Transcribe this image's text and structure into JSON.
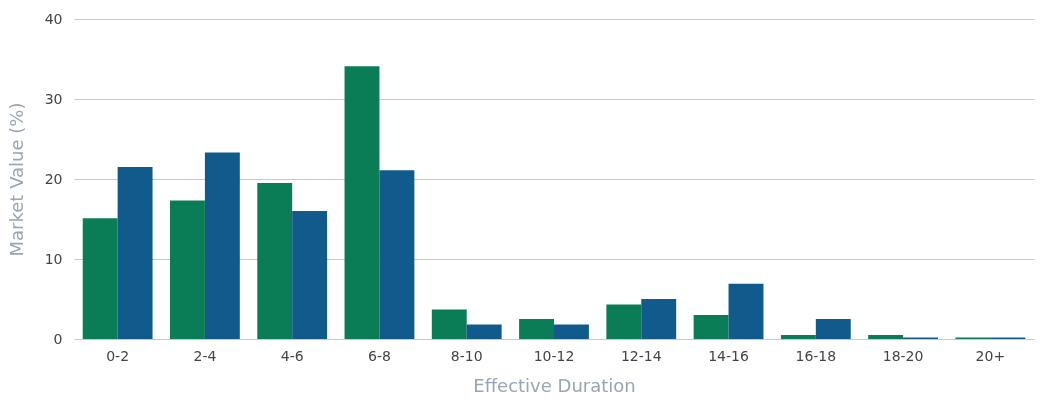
{
  "chart_data": {
    "type": "bar",
    "xlabel": "Effective Duration",
    "ylabel": "Market Value (%)",
    "categories": [
      "0-2",
      "2-4",
      "4-6",
      "6-8",
      "8-10",
      "10-12",
      "12-14",
      "14-16",
      "16-18",
      "18-20",
      "20+"
    ],
    "series": [
      {
        "color": "#0a7d57",
        "values": [
          15.1,
          17.3,
          19.5,
          34.1,
          3.7,
          2.5,
          4.3,
          3.0,
          0.5,
          0.5,
          0.2
        ]
      },
      {
        "color": "#105a8c",
        "values": [
          21.5,
          23.3,
          16.0,
          21.1,
          1.8,
          1.8,
          5.0,
          6.9,
          2.5,
          0.2,
          0.2
        ]
      }
    ],
    "ylim": [
      0,
      40
    ],
    "yticks": [
      0,
      10,
      20,
      30,
      40
    ],
    "grid": "y",
    "legend": false
  }
}
